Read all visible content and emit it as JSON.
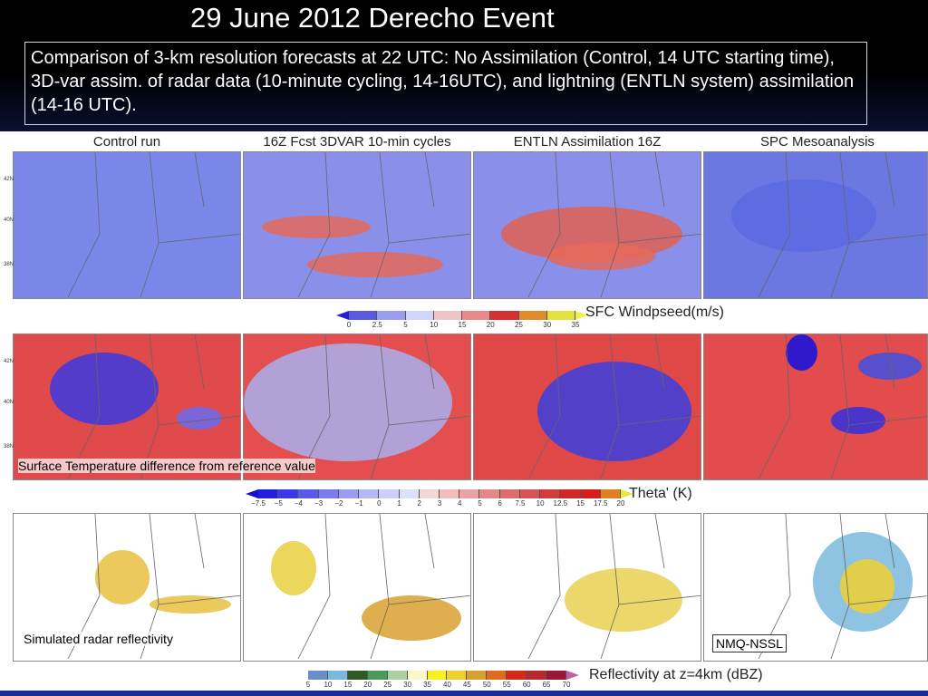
{
  "title": "29 June 2012 Derecho Event",
  "description": "Comparison of 3-km resolution forecasts at 22 UTC: No Assimilation (Control, 14 UTC starting time), 3D-var assim. of radar data (10-minute cycling, 14-16UTC), and lightning (ENTLN system) assimilation (14-16 UTC).",
  "columns": [
    "Control run",
    "16Z Fcst 3DVAR 10-min cycles",
    "ENTLN Assimilation 16Z",
    "SPC Mesoanalysis"
  ],
  "lat_labels": [
    "42N",
    "40N",
    "38N"
  ],
  "rows": [
    {
      "colorbar_label": "SFC Windpseed(m/s)",
      "ticks": [
        "0",
        "2.5",
        "5",
        "10",
        "15",
        "20",
        "25",
        "30",
        "35"
      ],
      "colors": [
        "#5a5ae0",
        "#9a9ef0",
        "#d0d4f8",
        "#f0c4c4",
        "#e88a8a",
        "#d83030",
        "#e08a2a",
        "#e4e040"
      ],
      "low_color": "#2020d0",
      "high_color": "#f0f050"
    },
    {
      "overlay": "Surface Temperature difference from reference value",
      "colorbar_label": "Theta' (K)",
      "ticks": [
        "−7.5",
        "−5",
        "−4",
        "−3",
        "−2",
        "−1",
        "0",
        "1",
        "2",
        "3",
        "4",
        "5",
        "6",
        "7.5",
        "10",
        "12.5",
        "15",
        "17.5",
        "20"
      ],
      "colors": [
        "#2020e0",
        "#3a3ae8",
        "#5a5aea",
        "#7a7cee",
        "#9a9cf0",
        "#b4b8f4",
        "#ccd0f8",
        "#dde0fa",
        "#f4d6d6",
        "#f0bcbc",
        "#eaa2a2",
        "#e48888",
        "#de6c6c",
        "#d85454",
        "#d43c3c",
        "#d02828",
        "#d81c1c",
        "#e08020"
      ],
      "low_color": "#1010d0",
      "high_color": "#e8e840"
    },
    {
      "overlay": "Simulated radar reflectivity",
      "overlay2": "NMQ-NSSL",
      "colorbar_label": "Reflectivity at z=4km (dBZ)",
      "ticks": [
        "5",
        "10",
        "15",
        "20",
        "25",
        "30",
        "35",
        "40",
        "45",
        "50",
        "55",
        "60",
        "65",
        "70"
      ],
      "colors": [
        "#6a8ec8",
        "#7ab8dc",
        "#2e5a24",
        "#4a9a5a",
        "#a8d0a0",
        "#f8f8c8",
        "#f8f020",
        "#f0d030",
        "#d8a030",
        "#e06a20",
        "#d82818",
        "#b82830",
        "#981838"
      ],
      "low_color": "#ffffff",
      "high_color": "#c060a0"
    }
  ]
}
